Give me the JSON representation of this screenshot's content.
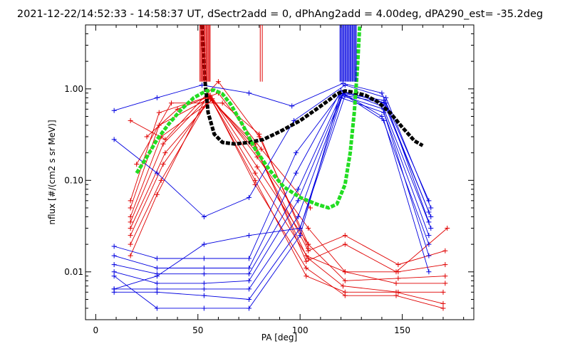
{
  "chart_data": {
    "type": "line",
    "title": "2021-12-22/14:52:33 - 14:58:37 UT, dSectr2add = 0, dPhAng2add = 4.00deg, dPA290_est= -35.2deg",
    "xlabel": "PA [deg]",
    "ylabel": "nflux [#/(cm2 s sr MeV)]",
    "xlim": [
      -5,
      185
    ],
    "ylim": [
      0.003,
      5.0
    ],
    "yscale": "log",
    "grid": false,
    "x_ticks": [
      0,
      50,
      100,
      150
    ],
    "x_tick_labels": [
      "0",
      "50",
      "100",
      "150"
    ],
    "y_ticks": [
      0.01,
      0.1,
      1.0
    ],
    "y_tick_labels": [
      "0.01",
      "0.10",
      "1.00"
    ],
    "colors": {
      "red": "#e00000",
      "blue": "#0000e0",
      "black": "#000000",
      "green": "#22dd22"
    },
    "series": [
      {
        "color": "red",
        "style": "line+plus",
        "x": [
          17,
          30,
          55,
          78,
          103,
          122,
          147,
          170
        ],
        "y": [
          0.015,
          0.07,
          0.88,
          0.1,
          0.009,
          0.006,
          0.006,
          0.0045
        ]
      },
      {
        "color": "red",
        "style": "line+plus",
        "x": [
          17,
          32,
          56,
          78,
          103,
          122,
          147,
          170
        ],
        "y": [
          0.02,
          0.1,
          0.82,
          0.09,
          0.011,
          0.0055,
          0.0055,
          0.004
        ]
      },
      {
        "color": "red",
        "style": "line+plus",
        "x": [
          17,
          33,
          56,
          78,
          104,
          121,
          148,
          170
        ],
        "y": [
          0.025,
          0.15,
          0.8,
          0.12,
          0.014,
          0.007,
          0.006,
          0.006
        ]
      },
      {
        "color": "red",
        "style": "line+plus",
        "x": [
          17,
          34,
          57,
          79,
          104,
          122,
          148,
          171
        ],
        "y": [
          0.03,
          0.2,
          0.78,
          0.14,
          0.02,
          0.008,
          0.0085,
          0.009
        ]
      },
      {
        "color": "red",
        "style": "line+plus",
        "x": [
          17,
          33,
          56,
          79,
          104,
          122,
          148,
          171
        ],
        "y": [
          0.035,
          0.25,
          0.85,
          0.18,
          0.03,
          0.01,
          0.01,
          0.012
        ]
      },
      {
        "color": "red",
        "style": "line+plus",
        "x": [
          17,
          32,
          57,
          79,
          104,
          122,
          148,
          171
        ],
        "y": [
          0.04,
          0.3,
          0.75,
          0.2,
          0.017,
          0.025,
          0.012,
          0.017
        ]
      },
      {
        "color": "red",
        "style": "line+plus",
        "x": [
          17,
          31,
          56,
          78,
          103,
          122,
          147,
          171
        ],
        "y": [
          0.05,
          0.4,
          0.8,
          0.23,
          0.015,
          0.01,
          0.0075,
          0.0075
        ]
      },
      {
        "color": "red",
        "style": "line+plus",
        "x": [
          17,
          31,
          55,
          78,
          103,
          122,
          147,
          172
        ],
        "y": [
          0.06,
          0.55,
          0.82,
          0.25,
          0.013,
          0.02,
          0.01,
          0.03
        ]
      },
      {
        "color": "red",
        "style": "line+plus",
        "x": [
          17,
          34,
          60,
          80,
          104
        ],
        "y": [
          0.45,
          0.28,
          1.2,
          0.3,
          0.02
        ]
      },
      {
        "color": "red",
        "style": "line+plus",
        "x": [
          20,
          37,
          62,
          80,
          104
        ],
        "y": [
          0.15,
          0.7,
          0.7,
          0.32,
          0.018
        ]
      },
      {
        "color": "red",
        "style": "line+plus",
        "x": [
          25,
          40,
          60,
          81,
          105
        ],
        "y": [
          0.3,
          0.6,
          0.9,
          0.22,
          0.05
        ]
      },
      {
        "color": "blue",
        "style": "line+plus",
        "x": [
          9,
          30,
          52,
          75,
          96,
          121,
          140,
          163
        ],
        "y": [
          0.58,
          0.8,
          1.1,
          0.9,
          0.65,
          1.15,
          0.9,
          0.06
        ]
      },
      {
        "color": "blue",
        "style": "line+plus",
        "x": [
          9,
          30,
          53,
          75,
          97,
          122,
          142,
          164
        ],
        "y": [
          0.28,
          0.12,
          0.04,
          0.065,
          0.45,
          1.1,
          0.8,
          0.05
        ]
      },
      {
        "color": "blue",
        "style": "line+plus",
        "x": [
          9,
          30,
          53,
          75,
          98,
          120,
          141,
          163
        ],
        "y": [
          0.019,
          0.014,
          0.014,
          0.014,
          0.2,
          0.9,
          0.75,
          0.045
        ]
      },
      {
        "color": "blue",
        "style": "line+plus",
        "x": [
          9,
          30,
          53,
          75,
          98,
          120,
          142,
          163
        ],
        "y": [
          0.015,
          0.011,
          0.011,
          0.011,
          0.12,
          0.95,
          0.7,
          0.035
        ]
      },
      {
        "color": "blue",
        "style": "line+plus",
        "x": [
          9,
          30,
          53,
          75,
          99,
          120,
          141,
          164
        ],
        "y": [
          0.012,
          0.0095,
          0.0095,
          0.0095,
          0.08,
          0.85,
          0.6,
          0.03
        ]
      },
      {
        "color": "blue",
        "style": "line+plus",
        "x": [
          9,
          30,
          53,
          75,
          99,
          120,
          141,
          163
        ],
        "y": [
          0.01,
          0.0075,
          0.0075,
          0.008,
          0.06,
          0.8,
          0.55,
          0.025
        ]
      },
      {
        "color": "blue",
        "style": "line+plus",
        "x": [
          9,
          30,
          53,
          75,
          99,
          121,
          140,
          163
        ],
        "y": [
          0.0065,
          0.0065,
          0.0065,
          0.0065,
          0.04,
          0.9,
          0.5,
          0.02
        ]
      },
      {
        "color": "blue",
        "style": "line+plus",
        "x": [
          9,
          30,
          53,
          75,
          100,
          121,
          141,
          163
        ],
        "y": [
          0.006,
          0.006,
          0.0055,
          0.005,
          0.03,
          0.88,
          0.45,
          0.01
        ]
      },
      {
        "color": "blue",
        "style": "line+plus",
        "x": [
          9,
          30,
          53,
          75,
          100,
          120,
          140,
          163
        ],
        "y": [
          0.009,
          0.004,
          0.004,
          0.004,
          0.025,
          0.95,
          0.65,
          0.015
        ]
      },
      {
        "color": "blue",
        "style": "line+plus",
        "x": [
          9,
          30,
          53,
          75,
          100,
          122,
          141,
          164
        ],
        "y": [
          0.0065,
          0.009,
          0.02,
          0.025,
          0.03,
          0.85,
          0.7,
          0.04
        ]
      },
      {
        "color": "black",
        "style": "thick-dash",
        "x": [
          52.0,
          52.7,
          53.5,
          55.0,
          58.0,
          62.0,
          68.0,
          75.0,
          82.0,
          90.0,
          100.0,
          108.0,
          114.0,
          118.0,
          122.0,
          126.0,
          132.0,
          138.0,
          144.0,
          150.0,
          156.0,
          160.0
        ],
        "y": [
          5.0,
          2.5,
          1.2,
          0.55,
          0.32,
          0.26,
          0.25,
          0.26,
          0.28,
          0.34,
          0.45,
          0.6,
          0.75,
          0.88,
          0.95,
          0.92,
          0.85,
          0.72,
          0.55,
          0.38,
          0.27,
          0.24
        ]
      },
      {
        "color": "green",
        "style": "thick-dash",
        "x": [
          20.0,
          25.0,
          30.0,
          36.0,
          42.0,
          48.0,
          54.0,
          58.0,
          62.0,
          66.0,
          72.0,
          78.0,
          85.0,
          92.0,
          100.0,
          108.0,
          114.0,
          118.0,
          122.0,
          124.5,
          126.5,
          128.0,
          129.2
        ],
        "y": [
          0.12,
          0.18,
          0.28,
          0.42,
          0.6,
          0.8,
          0.95,
          0.97,
          0.88,
          0.68,
          0.4,
          0.22,
          0.13,
          0.085,
          0.065,
          0.055,
          0.05,
          0.055,
          0.09,
          0.2,
          0.55,
          1.6,
          5.0
        ]
      },
      {
        "color": "red",
        "style": "vertical-lines",
        "x": [
          51.0,
          51.5,
          52.0,
          52.5,
          53.0,
          53.5,
          54.0,
          54.5,
          55.0,
          55.5,
          56.0,
          80.5,
          81.5
        ],
        "y_bottom": 1.2,
        "y_top": 5.0
      },
      {
        "color": "blue",
        "style": "vertical-lines",
        "x": [
          119.5,
          120.0,
          120.5,
          121.0,
          121.5,
          122.0,
          122.5,
          123.0,
          123.5,
          124.0,
          124.5,
          125.0,
          125.5,
          126.0,
          126.5,
          127.0,
          127.5
        ],
        "y_bottom": 1.2,
        "y_top": 5.0
      }
    ]
  }
}
